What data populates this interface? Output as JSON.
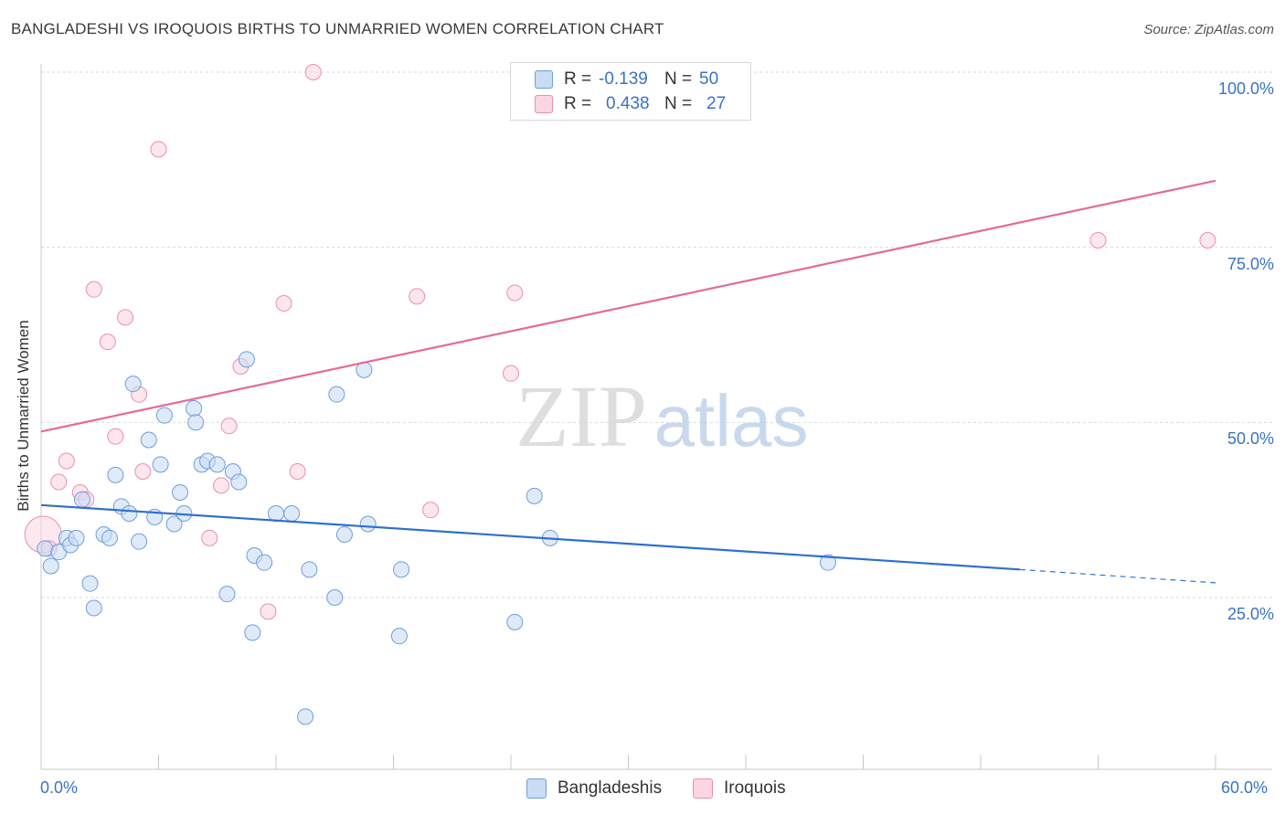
{
  "title": "BANGLADESHI VS IROQUOIS BIRTHS TO UNMARRIED WOMEN CORRELATION CHART",
  "source": "Source: ZipAtlas.com",
  "watermark": {
    "zip": "ZIP",
    "atlas": "atlas"
  },
  "legend": {
    "rows": [
      {
        "r_label": "R =",
        "r_value": "-0.139",
        "n_label": "N =",
        "n_value": "50",
        "color": "#aac8ef"
      },
      {
        "r_label": "R =",
        "r_value": "0.438",
        "n_label": "N =",
        "n_value": "27",
        "color": "#f6bccf"
      }
    ]
  },
  "bottom_legend": [
    {
      "label": "Bangladeshis",
      "color": "#aac8ef"
    },
    {
      "label": "Iroquois",
      "color": "#f6bccf"
    }
  ],
  "chart_data": {
    "type": "scatter",
    "title": "BANGLADESHI VS IROQUOIS BIRTHS TO UNMARRIED WOMEN CORRELATION CHART",
    "xlabel": "",
    "ylabel": "Births to Unmarried Women",
    "xlim": [
      0,
      60
    ],
    "ylim": [
      0,
      105
    ],
    "x_tick_labels": [
      "0.0%",
      "60.0%"
    ],
    "y_tick_labels": [
      "100.0%",
      "75.0%",
      "50.0%",
      "25.0%"
    ],
    "y_ticks": [
      100,
      75,
      50,
      25
    ],
    "grid": true,
    "legend_position": "top-center",
    "series": [
      {
        "name": "Bangladeshis",
        "color": "#aac8ef",
        "stroke": "#6d9fd9",
        "line_color": "#2e6fd0",
        "R": -0.139,
        "N": 50,
        "trend": {
          "x0": 0,
          "y0": 38.2,
          "x1": 50,
          "y1": 29.0,
          "dash_x1": 60,
          "dash_y1": 27.1
        },
        "points": [
          [
            0.2,
            32
          ],
          [
            0.5,
            29.5
          ],
          [
            0.9,
            31.5
          ],
          [
            1.3,
            33.5
          ],
          [
            1.5,
            32.5
          ],
          [
            1.8,
            33.5
          ],
          [
            2.1,
            39
          ],
          [
            2.5,
            27
          ],
          [
            2.7,
            23.5
          ],
          [
            3.2,
            34
          ],
          [
            3.5,
            33.5
          ],
          [
            3.8,
            42.5
          ],
          [
            4.1,
            38
          ],
          [
            4.5,
            37
          ],
          [
            4.7,
            55.5
          ],
          [
            5.0,
            33
          ],
          [
            5.5,
            47.5
          ],
          [
            5.8,
            36.5
          ],
          [
            6.1,
            44
          ],
          [
            6.3,
            51
          ],
          [
            6.8,
            35.5
          ],
          [
            7.1,
            40
          ],
          [
            7.3,
            37
          ],
          [
            7.8,
            52
          ],
          [
            7.9,
            50
          ],
          [
            8.2,
            44
          ],
          [
            8.5,
            44.5
          ],
          [
            9.0,
            44
          ],
          [
            9.5,
            25.5
          ],
          [
            9.8,
            43
          ],
          [
            10.1,
            41.5
          ],
          [
            10.5,
            59
          ],
          [
            10.8,
            20
          ],
          [
            10.9,
            31
          ],
          [
            11.4,
            30
          ],
          [
            12.0,
            37
          ],
          [
            12.8,
            37
          ],
          [
            13.5,
            8
          ],
          [
            13.7,
            29
          ],
          [
            15.0,
            25
          ],
          [
            15.1,
            54
          ],
          [
            15.5,
            34
          ],
          [
            16.5,
            57.5
          ],
          [
            16.7,
            35.5
          ],
          [
            18.3,
            19.5
          ],
          [
            18.4,
            29
          ],
          [
            24.2,
            21.5
          ],
          [
            25.2,
            39.5
          ],
          [
            26.0,
            33.5
          ],
          [
            40.2,
            30
          ]
        ]
      },
      {
        "name": "Iroquois",
        "color": "#f6bccf",
        "stroke": "#e98fae",
        "line_color": "#e66a93",
        "R": 0.438,
        "N": 27,
        "trend": {
          "x0": 0,
          "y0": 48.7,
          "x1": 60,
          "y1": 84.5
        },
        "points": [
          [
            0.1,
            34
          ],
          [
            0.4,
            32
          ],
          [
            0.9,
            41.5
          ],
          [
            1.3,
            44.5
          ],
          [
            2.0,
            40
          ],
          [
            2.3,
            39
          ],
          [
            2.7,
            69
          ],
          [
            3.4,
            61.5
          ],
          [
            3.8,
            48
          ],
          [
            4.3,
            65
          ],
          [
            5.0,
            54
          ],
          [
            5.2,
            43
          ],
          [
            6.0,
            89
          ],
          [
            8.6,
            33.5
          ],
          [
            9.2,
            41
          ],
          [
            9.6,
            49.5
          ],
          [
            10.2,
            58
          ],
          [
            11.6,
            23
          ],
          [
            12.4,
            67
          ],
          [
            13.1,
            43
          ],
          [
            13.9,
            100
          ],
          [
            19.2,
            68
          ],
          [
            19.9,
            37.5
          ],
          [
            24.0,
            57
          ],
          [
            24.2,
            68.5
          ],
          [
            54.0,
            76
          ],
          [
            59.6,
            76
          ]
        ]
      }
    ]
  }
}
